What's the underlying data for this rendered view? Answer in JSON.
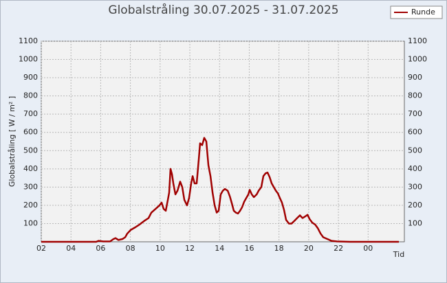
{
  "chart_data": {
    "type": "line",
    "title": "Globalstråling 30.07.2025 - 31.07.2025",
    "x_label": "Tid",
    "y_label": "Globalstråling [ W / m² ]",
    "x": [
      2,
      5.7,
      5.85,
      6.17,
      6.63,
      6.86,
      7.0,
      7.19,
      7.46,
      7.65,
      7.79,
      8.02,
      8.34,
      8.62,
      8.94,
      9.22,
      9.41,
      9.69,
      9.96,
      10.1,
      10.24,
      10.38,
      10.52,
      10.61,
      10.7,
      10.8,
      10.89,
      11.03,
      11.17,
      11.35,
      11.49,
      11.63,
      11.81,
      11.95,
      12.09,
      12.19,
      12.32,
      12.46,
      12.6,
      12.69,
      12.83,
      12.97,
      13.11,
      13.25,
      13.39,
      13.53,
      13.67,
      13.81,
      13.94,
      14.08,
      14.22,
      14.36,
      14.55,
      14.69,
      14.83,
      14.96,
      15.1,
      15.24,
      15.38,
      15.52,
      15.66,
      15.8,
      15.94,
      16.03,
      16.17,
      16.31,
      16.5,
      16.63,
      16.81,
      16.95,
      17.09,
      17.23,
      17.37,
      17.51,
      17.65,
      17.79,
      17.93,
      18.06,
      18.2,
      18.34,
      18.48,
      18.67,
      18.85,
      19.04,
      19.22,
      19.41,
      19.59,
      19.78,
      19.92,
      20.06,
      20.24,
      20.43,
      20.61,
      20.8,
      20.98,
      21.26,
      21.54,
      21.91,
      22.83,
      26.07
    ],
    "series": [
      {
        "name": "Runde",
        "color": "#a00000",
        "values": [
          0,
          0,
          5,
          2,
          2,
          15,
          20,
          10,
          15,
          25,
          45,
          65,
          80,
          95,
          115,
          130,
          160,
          180,
          200,
          215,
          180,
          170,
          230,
          270,
          400,
          370,
          320,
          260,
          280,
          330,
          300,
          230,
          200,
          240,
          320,
          360,
          320,
          320,
          450,
          540,
          530,
          570,
          550,
          420,
          360,
          270,
          200,
          160,
          170,
          260,
          280,
          290,
          280,
          250,
          210,
          170,
          160,
          155,
          170,
          190,
          220,
          240,
          260,
          285,
          260,
          245,
          260,
          280,
          300,
          360,
          375,
          380,
          355,
          320,
          300,
          280,
          265,
          240,
          215,
          175,
          120,
          100,
          100,
          115,
          130,
          145,
          130,
          140,
          148,
          125,
          105,
          95,
          75,
          45,
          25,
          15,
          5,
          2,
          0,
          0
        ]
      }
    ],
    "xlim": [
      2,
      26.44
    ],
    "xticks": [
      {
        "value": 2,
        "label": "02"
      },
      {
        "value": 4,
        "label": "04"
      },
      {
        "value": 6,
        "label": "06"
      },
      {
        "value": 8,
        "label": "08"
      },
      10,
      12,
      14,
      16,
      18,
      20,
      22,
      {
        "value": 24,
        "label": "00"
      }
    ],
    "ylim": [
      0,
      1100
    ],
    "yticks": [
      100,
      200,
      300,
      400,
      500,
      600,
      700,
      800,
      900,
      1000,
      1100
    ],
    "grid": true,
    "legend": "top-right"
  }
}
